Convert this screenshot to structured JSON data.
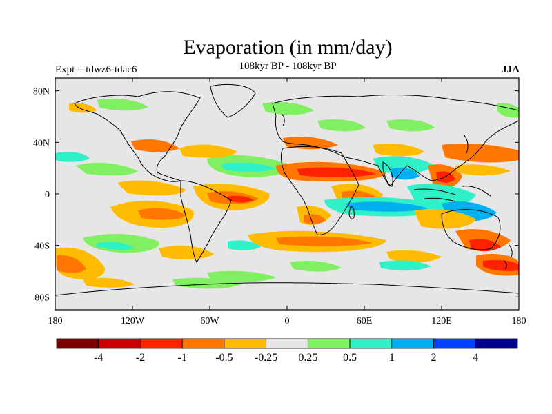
{
  "map": {
    "title": "Evaporation (in mm/day)",
    "subtitle": "108kyr BP - 108kyr BP",
    "experiment_label": "Expt = tdwz6-tdac6",
    "season_label": "JJA",
    "lon_ticks": [
      "180",
      "120W",
      "60W",
      "0",
      "60E",
      "120E",
      "180"
    ],
    "lat_ticks": [
      "80N",
      "40N",
      "0",
      "40S",
      "80S"
    ],
    "background_color": "#e6e6e6"
  },
  "colorbar": {
    "colors": [
      "#7a0000",
      "#cc0000",
      "#ff2200",
      "#ff7700",
      "#ffbb00",
      "#e6e6e6",
      "#80f060",
      "#30f0c8",
      "#00b0f0",
      "#0040ff",
      "#00008b"
    ],
    "labels": [
      "-4",
      "-2",
      "-1",
      "-0.5",
      "-0.25",
      "0.25",
      "0.5",
      "1",
      "2",
      "4"
    ]
  }
}
